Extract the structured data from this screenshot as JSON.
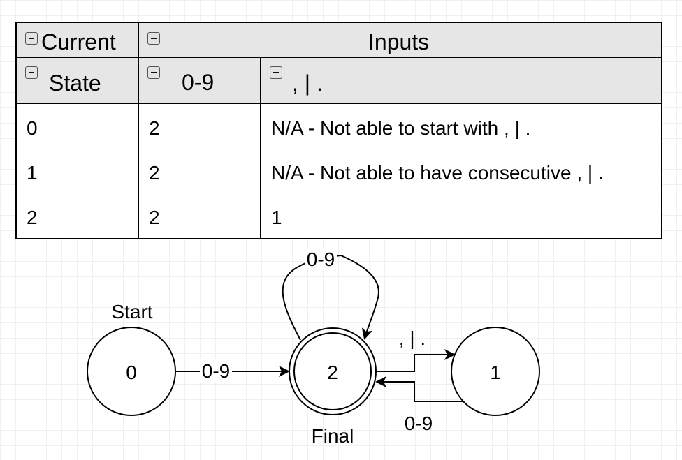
{
  "table": {
    "header": {
      "current": "Current",
      "inputs": "Inputs",
      "state": "State",
      "digits": "0-9",
      "separators": ", | ."
    },
    "rows": [
      {
        "state": "0",
        "digits": "2",
        "separators": "N/A - Not able to start with , | ."
      },
      {
        "state": "1",
        "digits": "2",
        "separators": "N/A - Not able to have consecutive , | ."
      },
      {
        "state": "2",
        "digits": "2",
        "separators": "1"
      }
    ],
    "toggle_icon": "collapse-minus-icon"
  },
  "diagram": {
    "states": [
      {
        "id": "0",
        "label": "0",
        "caption": "Start"
      },
      {
        "id": "2",
        "label": "2",
        "caption": "Final",
        "accepting": true
      },
      {
        "id": "1",
        "label": "1"
      }
    ],
    "transitions": {
      "start_to_final": "0-9",
      "final_loop": "0-9",
      "final_to_1": ", | .",
      "one_to_final": "0-9"
    }
  }
}
